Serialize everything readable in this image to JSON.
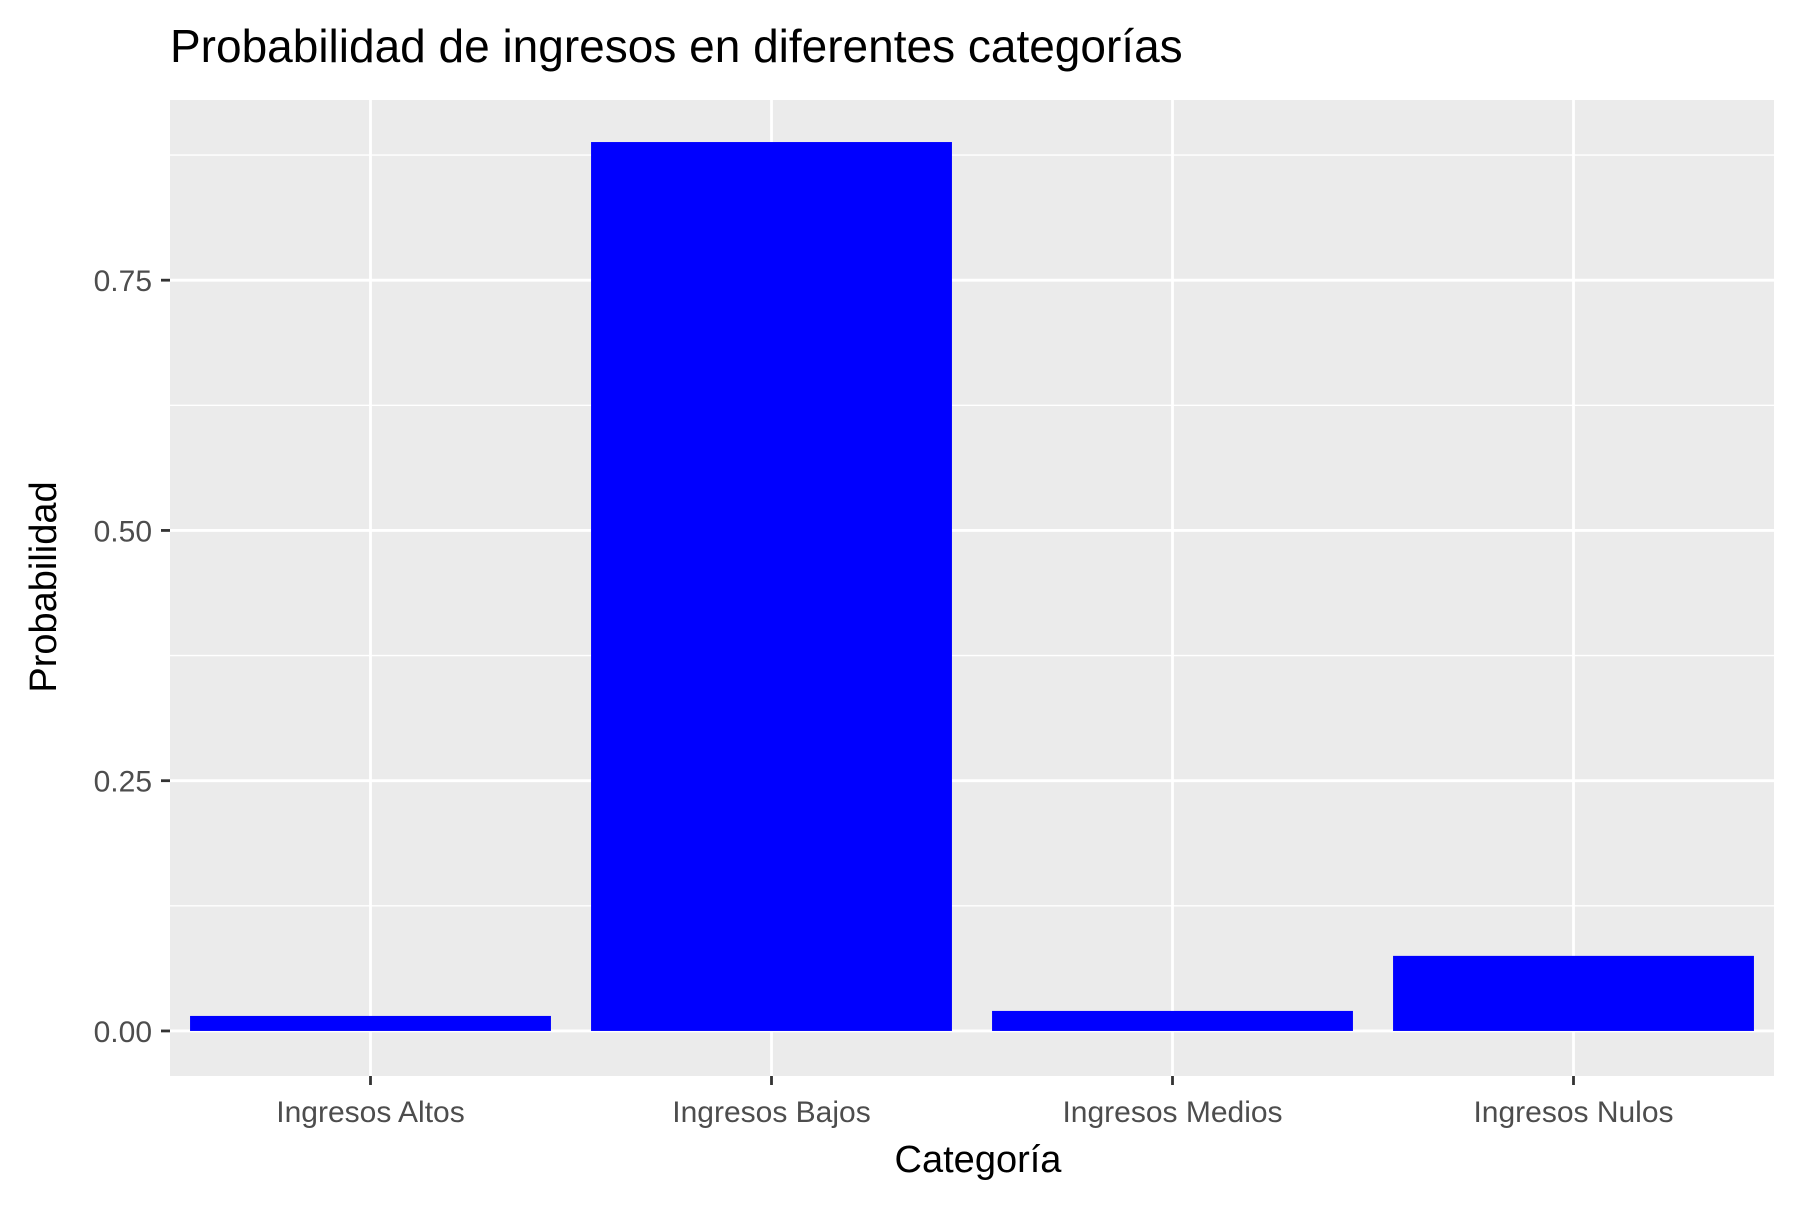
{
  "chart_data": {
    "type": "bar",
    "title": "Probabilidad de ingresos en diferentes categorías",
    "xlabel": "Categoría",
    "ylabel": "Probabilidad",
    "categories": [
      "Ingresos Altos",
      "Ingresos Bajos",
      "Ingresos Medios",
      "Ingresos Nulos"
    ],
    "values": [
      0.015,
      0.888,
      0.02,
      0.075
    ],
    "ylim": [
      -0.045,
      0.93
    ],
    "yticks": [
      0.0,
      0.25,
      0.5,
      0.75
    ],
    "ytick_labels": [
      "0.00",
      "0.25",
      "0.50",
      "0.75"
    ],
    "grid": true,
    "legend": "none",
    "bar_color": "#0000FF",
    "panel_background": "#EBEBEB",
    "grid_color": "#FFFFFF",
    "text_color": "#000000",
    "tick_label_color": "#4D4D4D",
    "tick_color": "#333333"
  }
}
